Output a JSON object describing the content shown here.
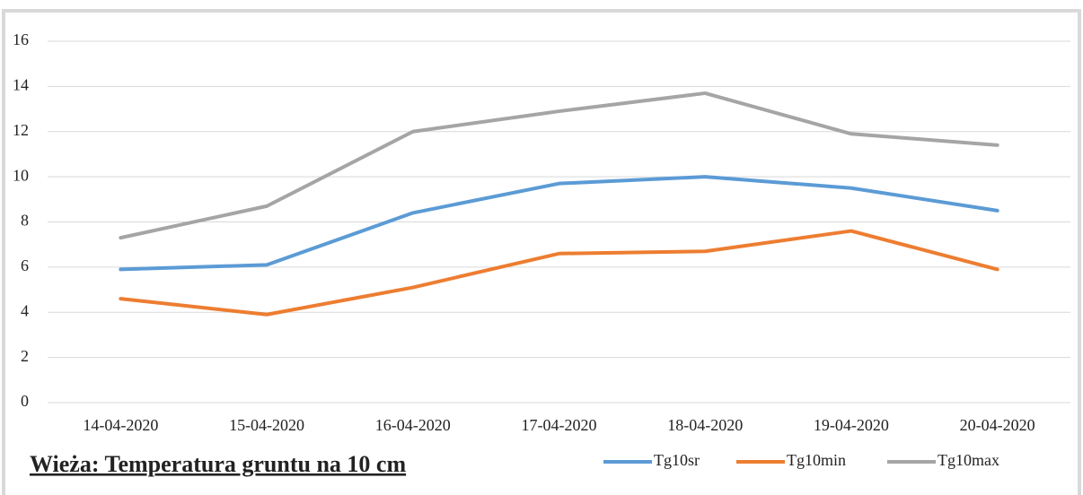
{
  "chart_data": {
    "type": "line",
    "title": "Wieża: Temperatura gruntu na 10 cm",
    "categories": [
      "14-04-2020",
      "15-04-2020",
      "16-04-2020",
      "17-04-2020",
      "18-04-2020",
      "19-04-2020",
      "20-04-2020"
    ],
    "series": [
      {
        "name": "Tg10sr",
        "color": "#5b9bd5",
        "values": [
          5.9,
          6.1,
          8.4,
          9.7,
          10.0,
          9.5,
          8.5
        ]
      },
      {
        "name": "Tg10min",
        "color": "#ed7d31",
        "values": [
          4.6,
          3.9,
          5.1,
          6.6,
          6.7,
          7.6,
          5.9
        ]
      },
      {
        "name": "Tg10max",
        "color": "#a5a5a5",
        "values": [
          7.3,
          8.7,
          12.0,
          12.9,
          13.7,
          11.9,
          11.4
        ]
      }
    ],
    "ylim": [
      0,
      16
    ],
    "yticks": [
      0,
      2,
      4,
      6,
      8,
      10,
      12,
      14,
      16
    ],
    "grid": true
  }
}
